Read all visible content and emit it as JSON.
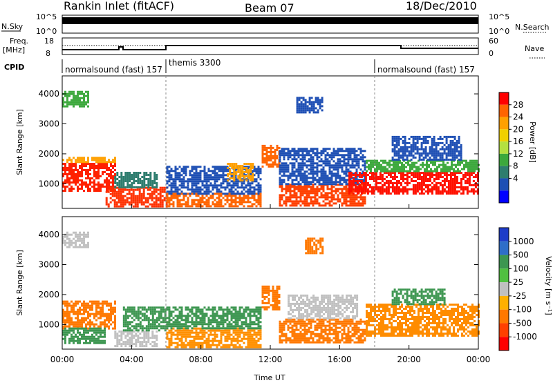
{
  "header": {
    "station": "Rankin Inlet (fitACF)",
    "beam": "Beam 07",
    "date": "18/Dec/2010"
  },
  "side_labels": {
    "nsky": "N.Sky",
    "freq": "Freq.",
    "freq_unit": "[MHz]",
    "cpid": "CPID",
    "nsearch": "N.Search",
    "nave": "Nave"
  },
  "small_axes": {
    "nsky_ticks": [
      "10^5",
      "10^0"
    ],
    "nsearch_ticks": [
      "10^5",
      "10^0"
    ],
    "freq_ticks": [
      "18",
      "8"
    ],
    "nave_ticks": [
      "60",
      "0"
    ]
  },
  "cpid_segments": [
    {
      "label": "normalsound (fast) 157",
      "start_hour": 0
    },
    {
      "label": "themis 3300",
      "start_hour": 6
    },
    {
      "label": "normalsound (fast) 157",
      "start_hour": 18
    }
  ],
  "chart_data": [
    {
      "type": "heatmap",
      "name": "power",
      "ylabel": "Slant Range [km]",
      "xlabel": "",
      "x_range_hours": [
        0,
        24
      ],
      "y_range_km": [
        180,
        4600
      ],
      "y_ticks": [
        "4000",
        "3000",
        "2000",
        "1000"
      ],
      "colorbar_label": "Power [dB]",
      "colorbar_ticks": [
        "28",
        "24",
        "20",
        "16",
        "12",
        "8",
        "4"
      ],
      "colorbar_colors": [
        "#ff0000",
        "#ff6400",
        "#ffa000",
        "#f0d000",
        "#b4e040",
        "#3ca83c",
        "#2e7d6e",
        "#1e4fb4",
        "#0000ff"
      ]
    },
    {
      "type": "heatmap",
      "name": "velocity",
      "ylabel": "Slant Range [km]",
      "xlabel": "Time UT",
      "x_ticks": [
        "00:00",
        "04:00",
        "08:00",
        "12:00",
        "16:00",
        "20:00",
        "00:00"
      ],
      "y_range_km": [
        180,
        4600
      ],
      "y_ticks": [
        "4000",
        "3000",
        "2000",
        "1000"
      ],
      "colorbar_label": "Velocity  [m s⁻¹]",
      "colorbar_ticks": [
        "1000",
        "500",
        "100",
        "25",
        "-25",
        "-100",
        "-500",
        "-1000"
      ],
      "colorbar_colors": [
        "#1e3cc8",
        "#2e6ec8",
        "#3c9650",
        "#50c040",
        "#c0c0c0",
        "#ffb000",
        "#ff7800",
        "#ff4000",
        "#ff0000"
      ]
    }
  ],
  "regions": {
    "power": [
      {
        "t0": 0.0,
        "t1": 3.0,
        "r0": 800,
        "r1": 1700,
        "c": "#ff2000"
      },
      {
        "t0": 0.0,
        "t1": 3.0,
        "r0": 1700,
        "r1": 1900,
        "c": "#ffa000"
      },
      {
        "t0": 2.5,
        "t1": 6.0,
        "r0": 250,
        "r1": 900,
        "c": "#ff3000"
      },
      {
        "t0": 3.0,
        "t1": 5.5,
        "r0": 900,
        "r1": 1400,
        "c": "#2e7d6e"
      },
      {
        "t0": 6.0,
        "t1": 11.5,
        "r0": 250,
        "r1": 700,
        "c": "#ff6400"
      },
      {
        "t0": 6.0,
        "t1": 11.5,
        "r0": 700,
        "r1": 1600,
        "c": "#1e4fb4"
      },
      {
        "t0": 9.5,
        "t1": 11.0,
        "r0": 1100,
        "r1": 1700,
        "c": "#ffa000"
      },
      {
        "t0": 11.5,
        "t1": 12.5,
        "r0": 1600,
        "r1": 2300,
        "c": "#ff6400"
      },
      {
        "t0": 12.5,
        "t1": 17.5,
        "r0": 300,
        "r1": 1000,
        "c": "#ff4000"
      },
      {
        "t0": 12.5,
        "t1": 17.5,
        "r0": 1000,
        "r1": 2200,
        "c": "#1e4fb4"
      },
      {
        "t0": 16.5,
        "t1": 24.0,
        "r0": 700,
        "r1": 1400,
        "c": "#ff1000"
      },
      {
        "t0": 17.5,
        "t1": 24.0,
        "r0": 1400,
        "r1": 1800,
        "c": "#3ca83c"
      },
      {
        "t0": 19.0,
        "t1": 23.0,
        "r0": 1800,
        "r1": 2600,
        "c": "#1e4fb4"
      },
      {
        "t0": 0.0,
        "t1": 1.5,
        "r0": 3600,
        "r1": 4100,
        "c": "#3ca83c"
      },
      {
        "t0": 13.5,
        "t1": 15.0,
        "r0": 3400,
        "r1": 3900,
        "c": "#1e4fb4"
      }
    ],
    "velocity": [
      {
        "t0": 0.0,
        "t1": 3.0,
        "r0": 900,
        "r1": 1800,
        "c": "#ff7800"
      },
      {
        "t0": 0.0,
        "t1": 2.5,
        "r0": 400,
        "r1": 900,
        "c": "#3c9650"
      },
      {
        "t0": 3.0,
        "t1": 5.5,
        "r0": 300,
        "r1": 800,
        "c": "#c0c0c0"
      },
      {
        "t0": 3.5,
        "t1": 6.0,
        "r0": 800,
        "r1": 1600,
        "c": "#3c9650"
      },
      {
        "t0": 6.0,
        "t1": 11.5,
        "r0": 250,
        "r1": 900,
        "c": "#ff9000"
      },
      {
        "t0": 6.0,
        "t1": 11.5,
        "r0": 900,
        "r1": 1600,
        "c": "#3c9650"
      },
      {
        "t0": 11.5,
        "t1": 12.5,
        "r0": 1500,
        "r1": 2300,
        "c": "#ff7800"
      },
      {
        "t0": 12.5,
        "t1": 17.5,
        "r0": 400,
        "r1": 1200,
        "c": "#ff7800"
      },
      {
        "t0": 13.0,
        "t1": 17.0,
        "r0": 1200,
        "r1": 2000,
        "c": "#c0c0c0"
      },
      {
        "t0": 17.5,
        "t1": 24.0,
        "r0": 600,
        "r1": 1700,
        "c": "#ff8c00"
      },
      {
        "t0": 19.0,
        "t1": 22.0,
        "r0": 1700,
        "r1": 2200,
        "c": "#3c9650"
      },
      {
        "t0": 14.0,
        "t1": 15.0,
        "r0": 3400,
        "r1": 3900,
        "c": "#ff7800"
      },
      {
        "t0": 0.0,
        "t1": 1.5,
        "r0": 3600,
        "r1": 4100,
        "c": "#c0c0c0"
      }
    ]
  }
}
